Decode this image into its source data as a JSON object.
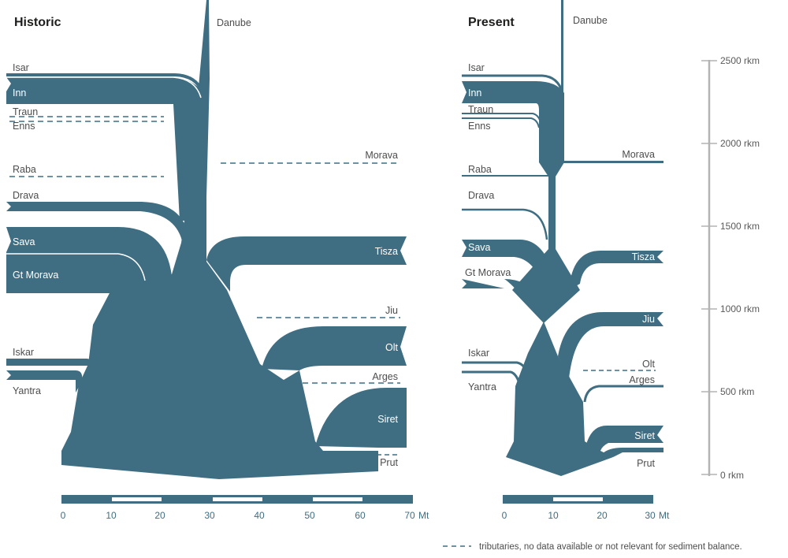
{
  "colors": {
    "flow": "#3f6e82",
    "scale_bar": "#3f6e82",
    "rkm_axis": "#b3b3b3",
    "text": "#4d4d4d",
    "inside_text": "#ffffff"
  },
  "historic": {
    "title": "Historic",
    "main_river": "Danube",
    "tributaries": {
      "isar": "Isar",
      "inn": "Inn",
      "traun": "Traun",
      "enns": "Enns",
      "raba": "Raba",
      "drava": "Drava",
      "sava": "Sava",
      "gt_morava": "Gt Morava",
      "morava": "Morava",
      "tisza": "Tisza",
      "jiu": "Jiu",
      "olt": "Olt",
      "iskar": "Iskar",
      "yantra": "Yantra",
      "arges": "Arges",
      "siret": "Siret",
      "prut": "Prut"
    },
    "scale": {
      "ticks": [
        "0",
        "10",
        "20",
        "30",
        "40",
        "50",
        "60",
        "70"
      ],
      "unit": "Mt"
    }
  },
  "present": {
    "title": "Present",
    "main_river": "Danube",
    "tributaries": {
      "isar": "Isar",
      "inn": "Inn",
      "traun": "Traun",
      "enns": "Enns",
      "raba": "Raba",
      "drava": "Drava",
      "sava": "Sava",
      "gt_morava": "Gt Morava",
      "morava": "Morava",
      "tisza": "Tisza",
      "jiu": "Jiu",
      "olt": "Olt",
      "iskar": "Iskar",
      "yantra": "Yantra",
      "arges": "Arges",
      "siret": "Siret",
      "prut": "Prut"
    },
    "scale": {
      "ticks": [
        "0",
        "10",
        "20",
        "30"
      ],
      "unit": "Mt"
    }
  },
  "rkm_axis": {
    "labels": [
      "2500 rkm",
      "2000 rkm",
      "1500 rkm",
      "1000 rkm",
      "500 rkm",
      "0 rkm"
    ]
  },
  "legend": {
    "text": "tributaries, no data available or not relevant for sediment balance."
  }
}
